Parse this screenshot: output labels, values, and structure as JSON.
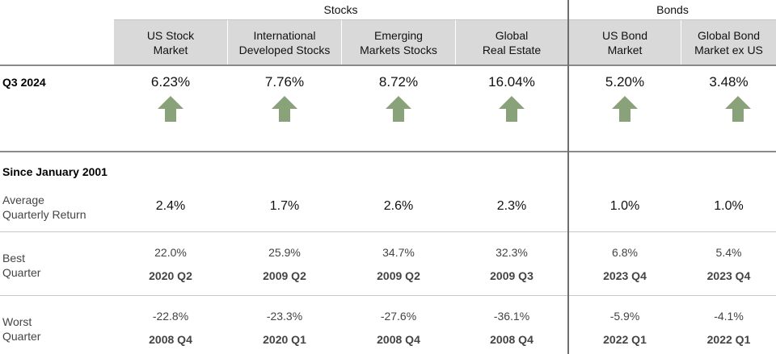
{
  "groups": {
    "stocks": "Stocks",
    "bonds": "Bonds"
  },
  "columns": [
    {
      "header": "US Stock\nMarket",
      "q3": "6.23%",
      "avg": "2.4%",
      "best_pct": "22.0%",
      "best_qtr": "2020 Q2",
      "worst_pct": "-22.8%",
      "worst_qtr": "2008 Q4"
    },
    {
      "header": "International\nDeveloped Stocks",
      "q3": "7.76%",
      "avg": "1.7%",
      "best_pct": "25.9%",
      "best_qtr": "2009 Q2",
      "worst_pct": "-23.3%",
      "worst_qtr": "2020 Q1"
    },
    {
      "header": "Emerging\nMarkets Stocks",
      "q3": "8.72%",
      "avg": "2.6%",
      "best_pct": "34.7%",
      "best_qtr": "2009 Q2",
      "worst_pct": "-27.6%",
      "worst_qtr": "2008 Q4"
    },
    {
      "header": "Global\nReal Estate",
      "q3": "16.04%",
      "avg": "2.3%",
      "best_pct": "32.3%",
      "best_qtr": "2009 Q3",
      "worst_pct": "-36.1%",
      "worst_qtr": "2008 Q4"
    },
    {
      "header": "US Bond\nMarket",
      "q3": "5.20%",
      "avg": "1.0%",
      "best_pct": "6.8%",
      "best_qtr": "2023 Q4",
      "worst_pct": "-5.9%",
      "worst_qtr": "2022 Q1"
    },
    {
      "header": "Global Bond\nMarket ex US",
      "q3": "3.48%",
      "avg": "1.0%",
      "best_pct": "5.4%",
      "best_qtr": "2023 Q4",
      "worst_pct": "-4.1%",
      "worst_qtr": "2022 Q1"
    }
  ],
  "rows": {
    "q3_label": "Q3 2024",
    "since_label": "Since January 2001",
    "avg_label": "Average\nQuarterly Return",
    "best_label": "Best\nQuarter",
    "worst_label": "Worst\nQuarter"
  },
  "arrow_direction": "up",
  "colors": {
    "arrow": "#8aa27a",
    "header_bg": "#d9d9d9"
  }
}
